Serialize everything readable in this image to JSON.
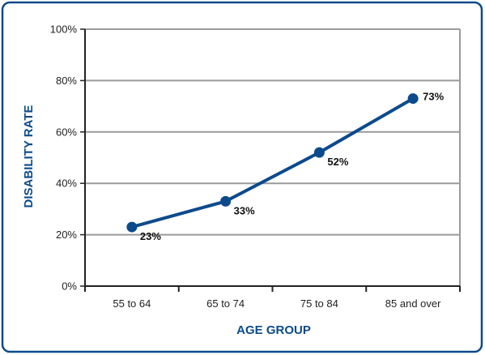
{
  "colors": {
    "frame": "#0c4a8c",
    "series": "#0c4a8c",
    "grid": "#9a9a9a",
    "axis": "#222222",
    "title": "#0c4a8c"
  },
  "chart_data": {
    "type": "line",
    "categories": [
      "55 to 64",
      "65 to 74",
      "75 to 84",
      "85 and over"
    ],
    "series": [
      {
        "values": [
          23,
          33,
          52,
          73
        ],
        "labels": [
          "23%",
          "33%",
          "52%",
          "73%"
        ]
      }
    ],
    "xlabel": "AGE GROUP",
    "ylabel": "DISABILITY RATE",
    "ylim": [
      0,
      100
    ],
    "yticks": [
      0,
      20,
      40,
      60,
      80,
      100
    ],
    "ytick_labels": [
      "0%",
      "20%",
      "40%",
      "60%",
      "80%",
      "100%"
    ],
    "grid": true,
    "legend": "none"
  }
}
